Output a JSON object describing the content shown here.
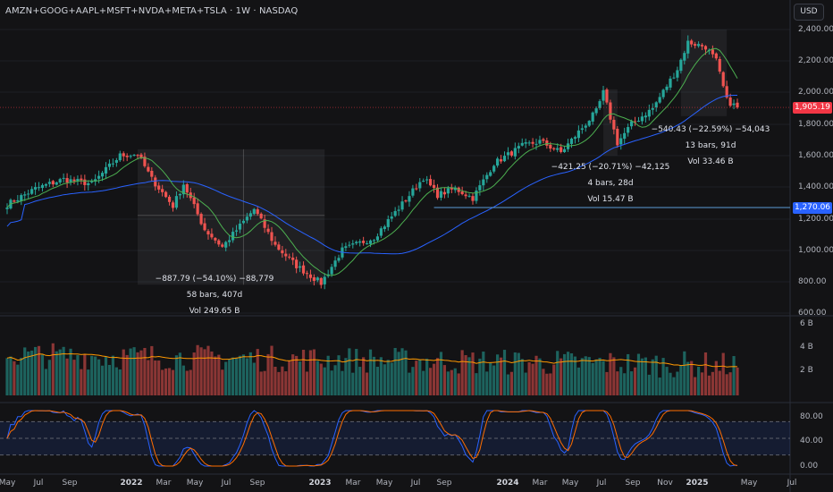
{
  "header": {
    "title": "AMZN+GOOG+AAPL+MSFT+NVDA+META+TSLA · 1W · NASDAQ",
    "currency_button": "USD"
  },
  "price_axis": {
    "ticks": [
      "2,400.00",
      "2,200.00",
      "2,000.00",
      "1,800.00",
      "1,600.00",
      "1,400.00",
      "1,200.00",
      "1,000.00",
      "800.00",
      "600.00"
    ],
    "current_price": "1,905.19",
    "current_price_color": "#f23645",
    "horizontal_line_price": "1,270.06",
    "horizontal_line_color": "#5b9bd5"
  },
  "volume_axis": {
    "ticks": [
      "6 B",
      "4 B",
      "2 B"
    ]
  },
  "oscillator_axis": {
    "ticks": [
      "80.00",
      "40.00",
      "0.00"
    ]
  },
  "time_axis": {
    "labels": [
      {
        "text": "May",
        "bold": false
      },
      {
        "text": "Jul",
        "bold": false
      },
      {
        "text": "Sep",
        "bold": false
      },
      {
        "text": "2022",
        "bold": true
      },
      {
        "text": "Mar",
        "bold": false
      },
      {
        "text": "May",
        "bold": false
      },
      {
        "text": "Jul",
        "bold": false
      },
      {
        "text": "Sep",
        "bold": false
      },
      {
        "text": "2023",
        "bold": true
      },
      {
        "text": "Mar",
        "bold": false
      },
      {
        "text": "May",
        "bold": false
      },
      {
        "text": "Jul",
        "bold": false
      },
      {
        "text": "Sep",
        "bold": false
      },
      {
        "text": "2024",
        "bold": true
      },
      {
        "text": "Mar",
        "bold": false
      },
      {
        "text": "May",
        "bold": false
      },
      {
        "text": "Jul",
        "bold": false
      },
      {
        "text": "Sep",
        "bold": false
      },
      {
        "text": "Nov",
        "bold": false
      },
      {
        "text": "2025",
        "bold": true
      },
      {
        "text": "May",
        "bold": false
      },
      {
        "text": "Jul",
        "bold": false
      }
    ]
  },
  "measurements": [
    {
      "line1": "−887.79 (−54.10%) −88,779",
      "line2": "58 bars, 407d",
      "line3": "Vol 249.65 B"
    },
    {
      "line1": "−421.25 (−20.71%) −42,125",
      "line2": "4 bars, 28d",
      "line3": "Vol 15.47 B"
    },
    {
      "line1": "−540.43 (−22.59%) −54,043",
      "line2": "13 bars, 91d",
      "line3": "Vol 33.46 B"
    }
  ],
  "colors": {
    "up": "#26a69a",
    "down": "#ef5350",
    "ma_fast": "#4caf50",
    "ma_slow": "#2962ff",
    "volume_ma": "#ff9800",
    "stoch_k": "#2962ff",
    "stoch_d": "#ff6d00",
    "band": "#2962ff"
  },
  "chart_data": {
    "type": "candlestick",
    "timeframe": "1W",
    "anchors": [
      [
        "2021-04-12",
        1290
      ],
      [
        "2021-06-07",
        1390
      ],
      [
        "2021-08-02",
        1450
      ],
      [
        "2021-09-27",
        1420
      ],
      [
        "2021-11-22",
        1600
      ],
      [
        "2021-12-27",
        1610
      ],
      [
        "2022-01-24",
        1450
      ],
      [
        "2022-03-07",
        1280
      ],
      [
        "2022-03-28",
        1420
      ],
      [
        "2022-05-09",
        1130
      ],
      [
        "2022-06-13",
        1020
      ],
      [
        "2022-08-15",
        1260
      ],
      [
        "2022-09-26",
        1030
      ],
      [
        "2022-11-07",
        900
      ],
      [
        "2022-12-26",
        790
      ],
      [
        "2023-02-06",
        1000
      ],
      [
        "2023-04-10",
        1080
      ],
      [
        "2023-06-12",
        1320
      ],
      [
        "2023-07-17",
        1460
      ],
      [
        "2023-08-14",
        1350
      ],
      [
        "2023-09-18",
        1390
      ],
      [
        "2023-10-23",
        1330
      ],
      [
        "2023-12-04",
        1550
      ],
      [
        "2024-01-29",
        1660
      ],
      [
        "2024-03-04",
        1690
      ],
      [
        "2024-04-15",
        1620
      ],
      [
        "2024-06-24",
        1880
      ],
      [
        "2024-07-08",
        2000
      ],
      [
        "2024-08-05",
        1680
      ],
      [
        "2024-09-02",
        1800
      ],
      [
        "2024-10-14",
        1900
      ],
      [
        "2024-12-02",
        2150
      ],
      [
        "2024-12-23",
        2320
      ],
      [
        "2025-01-27",
        2290
      ],
      [
        "2025-02-17",
        2200
      ],
      [
        "2025-03-10",
        1950
      ],
      [
        "2025-03-31",
        1905
      ]
    ],
    "y_range": [
      600,
      2400
    ],
    "volume_range_billions": [
      0,
      6
    ],
    "oscillator_range": [
      0,
      100
    ],
    "oscillator_levels": [
      80,
      50,
      20
    ],
    "ranges": [
      {
        "from": "2021-12-27",
        "to": "2023-01-02"
      },
      {
        "from": "2024-07-08",
        "to": "2024-08-05"
      },
      {
        "from": "2024-12-09",
        "to": "2025-03-10"
      }
    ]
  }
}
